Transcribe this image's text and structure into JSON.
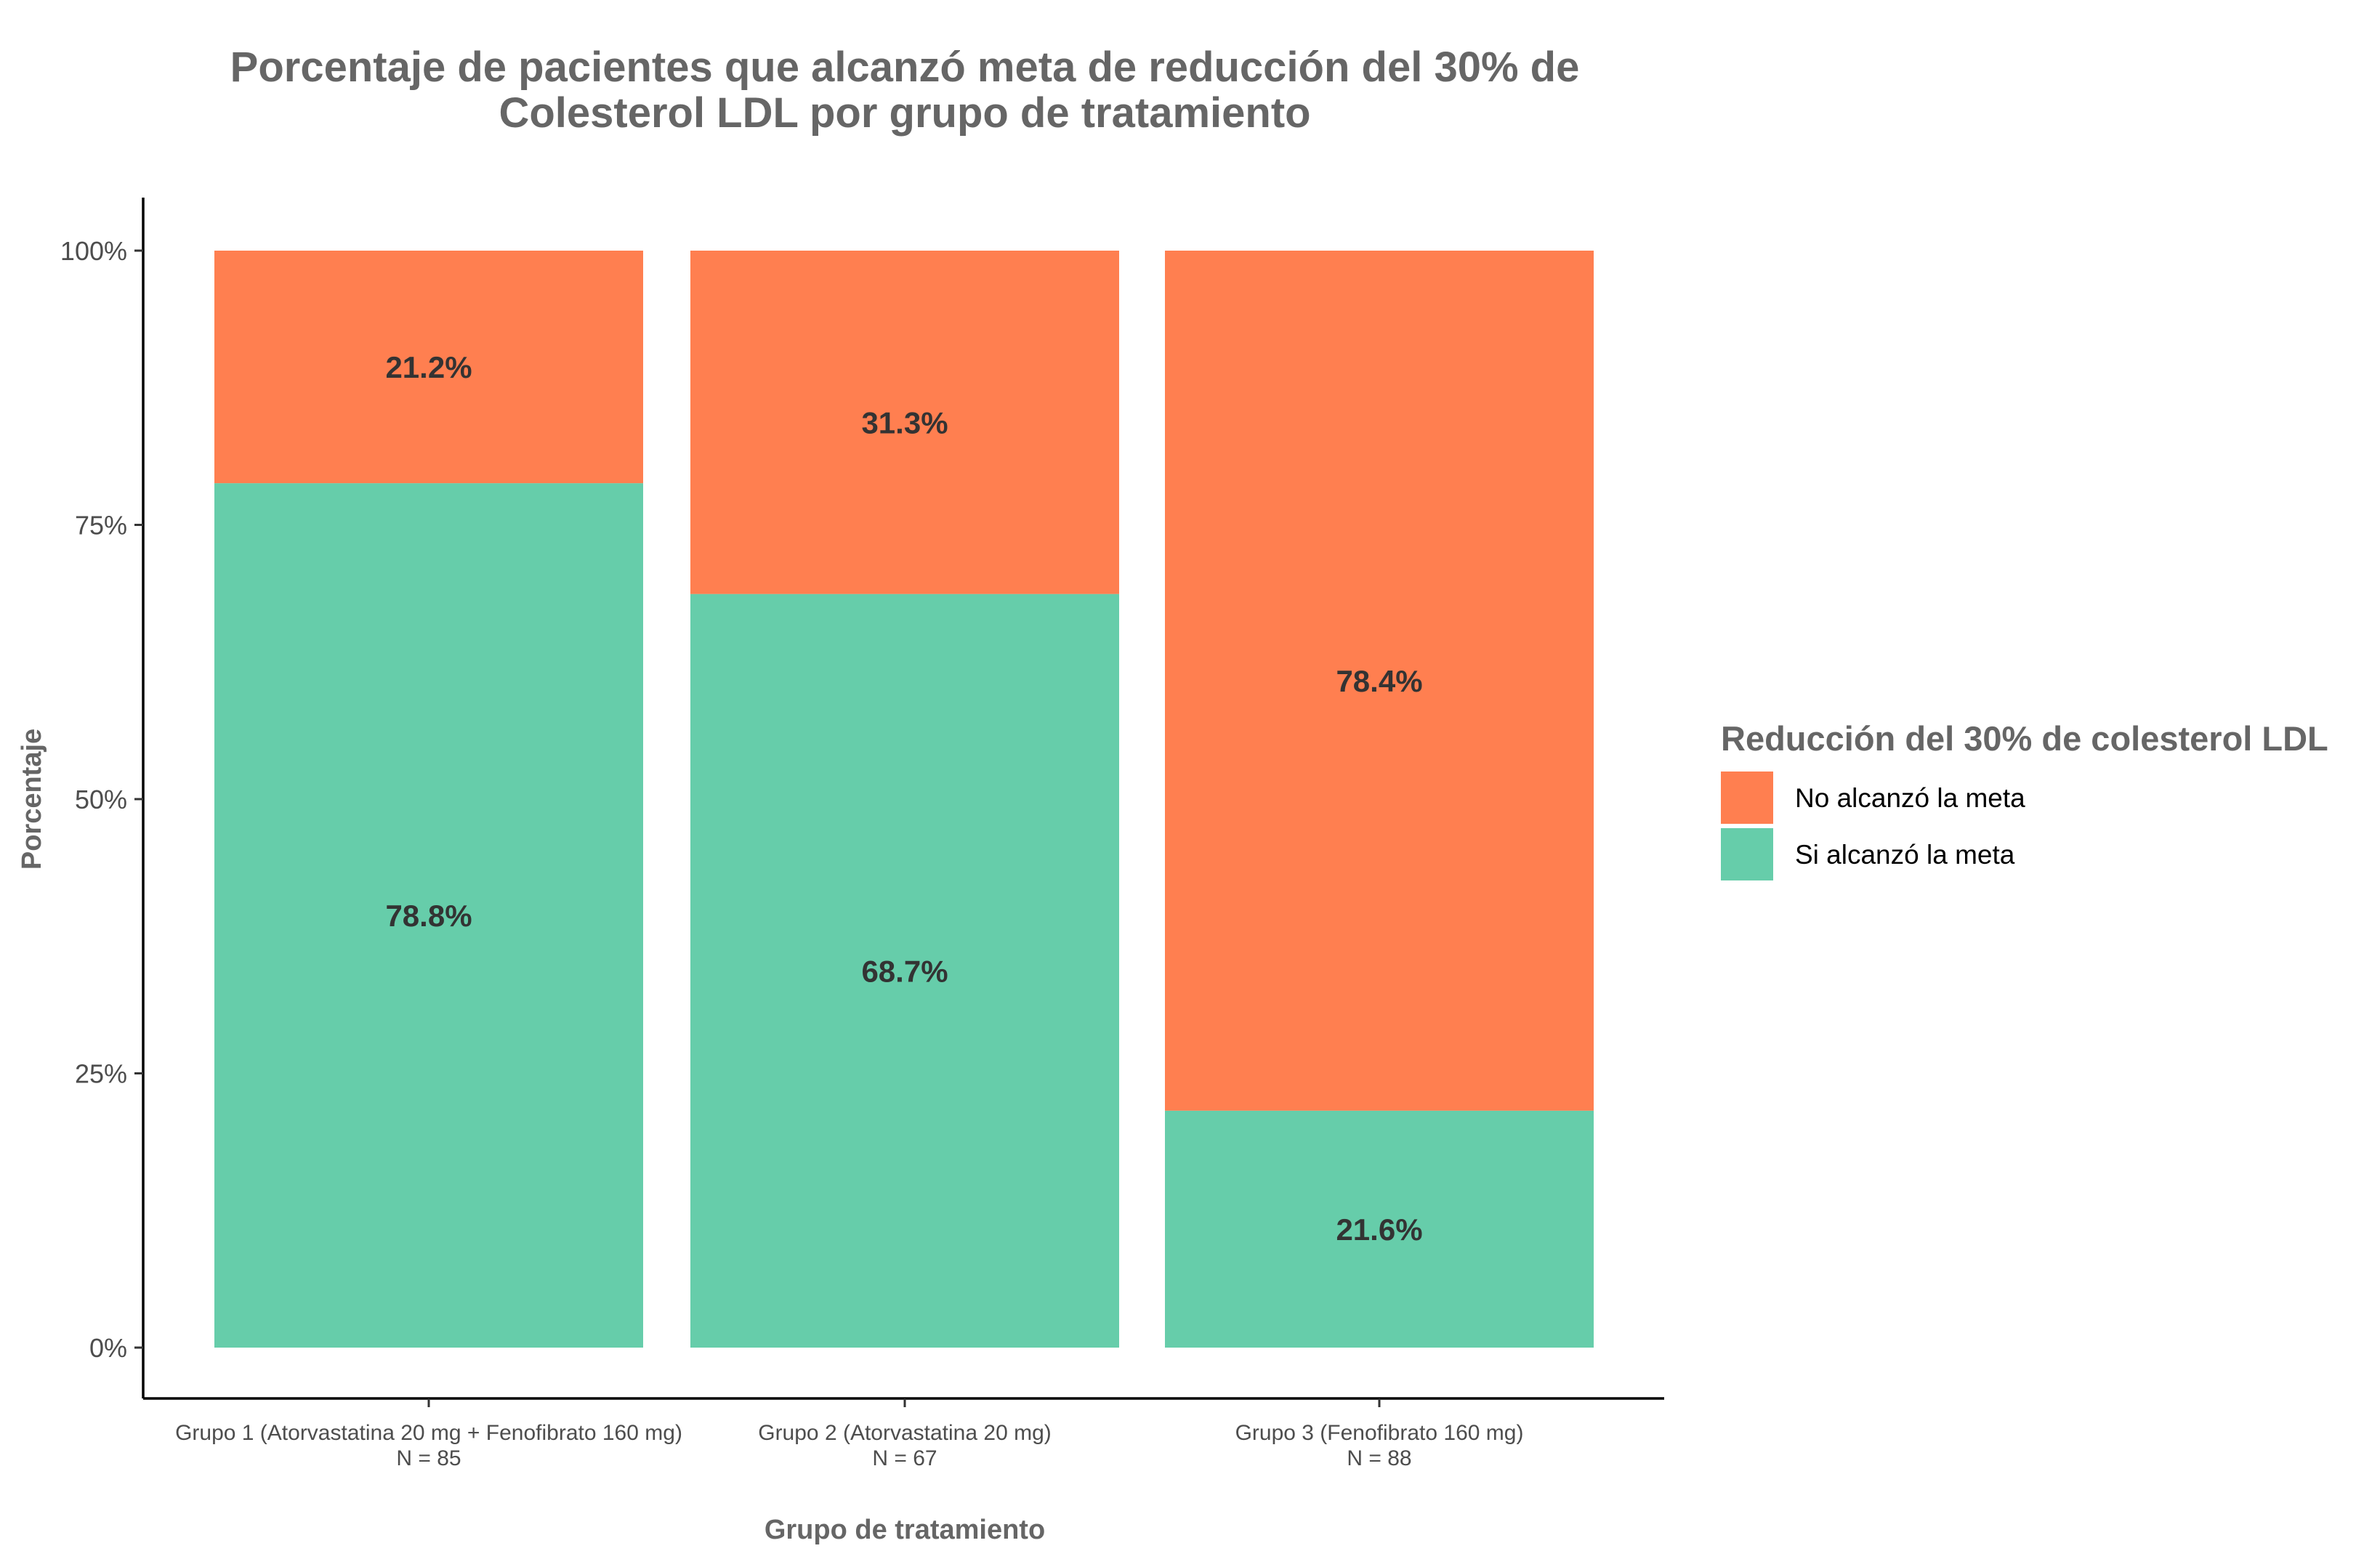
{
  "chart_data": {
    "type": "bar",
    "stacked": true,
    "percent": true,
    "title_lines": [
      "Porcentaje de pacientes que alcanzó meta de reducción del 30% de",
      "Colesterol LDL por grupo de tratamiento"
    ],
    "xlabel": "Grupo de tratamiento",
    "ylabel": "Porcentaje",
    "ylim": [
      0,
      100
    ],
    "yticks": [
      0,
      25,
      50,
      75,
      100
    ],
    "ytick_labels": [
      "0%",
      "25%",
      "50%",
      "75%",
      "100%"
    ],
    "grid": false,
    "categories": [
      {
        "label": "Grupo 1 (Atorvastatina 20 mg + Fenofibrato 160 mg)",
        "n_label": "N = 85"
      },
      {
        "label": "Grupo 2 (Atorvastatina 20 mg)",
        "n_label": "N = 67"
      },
      {
        "label": "Grupo 3 (Fenofibrato 160 mg)",
        "n_label": "N = 88"
      }
    ],
    "series": [
      {
        "name": "Si alcanzó la meta",
        "color": "#66CDAA",
        "values": [
          78.8,
          68.7,
          21.6
        ],
        "value_labels": [
          "78.8%",
          "68.7%",
          "21.6%"
        ]
      },
      {
        "name": "No alcanzó la meta",
        "color": "#FF7F50",
        "values": [
          21.2,
          31.3,
          78.4
        ],
        "value_labels": [
          "21.2%",
          "31.3%",
          "78.4%"
        ]
      }
    ],
    "legend": {
      "title": "Reducción del 30% de colesterol LDL",
      "position": "right",
      "entries": [
        {
          "label": "No alcanzó la meta",
          "color": "#FF7F50"
        },
        {
          "label": "Si alcanzó la meta",
          "color": "#66CDAA"
        }
      ]
    }
  }
}
